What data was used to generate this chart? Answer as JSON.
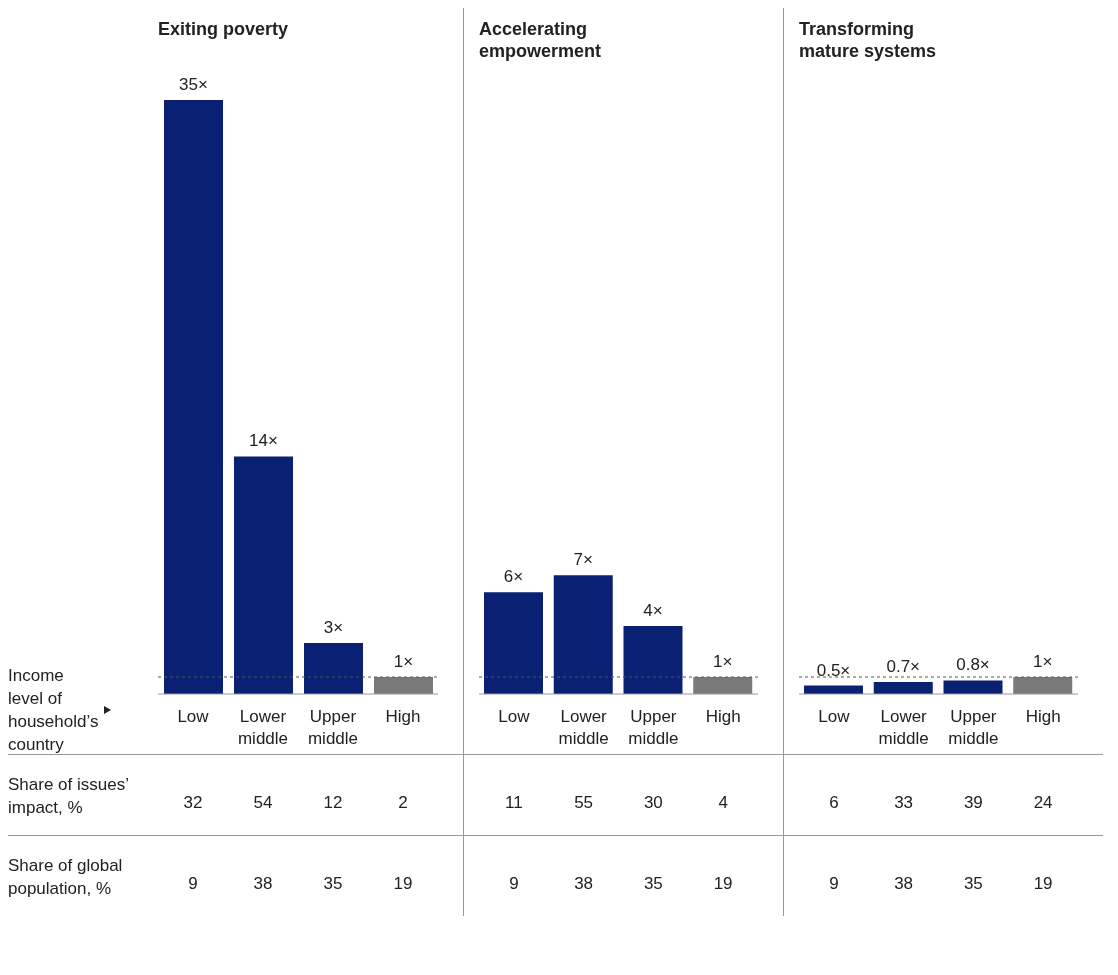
{
  "chart_data": [
    {
      "type": "bar",
      "title": "Exiting poverty",
      "xlabel": "Income level of household’s country",
      "categories": [
        "Low",
        "Lower middle",
        "Upper middle",
        "High"
      ],
      "values": [
        35,
        14,
        3,
        1
      ],
      "colors": [
        "#0a2173",
        "#0a2173",
        "#0a2173",
        "#7a7a7a"
      ],
      "value_labels": [
        "35×",
        "14×",
        "3×",
        "1×"
      ],
      "tick_labels": "x",
      "ref_lines": [
        {
          "axis": "y",
          "value": 1,
          "line_style": "dashed",
          "color": "#555555"
        }
      ],
      "annotations": [
        "Share of issues’ impact, %",
        "32",
        "54",
        "12",
        "2",
        "Share of global population, %",
        "9",
        "38",
        "35",
        "19"
      ]
    },
    {
      "type": "bar",
      "title": "Accelerating empowerment",
      "categories": [
        "Low",
        "Lower middle",
        "Upper middle",
        "High"
      ],
      "values": [
        6,
        7,
        4,
        1
      ],
      "colors": [
        "#0a2173",
        "#0a2173",
        "#0a2173",
        "#7a7a7a"
      ],
      "value_labels": [
        "6×",
        "7×",
        "4×",
        "1×"
      ],
      "tick_labels": "x",
      "ref_lines": [
        {
          "axis": "y",
          "value": 1,
          "line_style": "dashed",
          "color": "#555555"
        }
      ],
      "annotations": [
        "11",
        "55",
        "30",
        "4",
        "9",
        "38",
        "35",
        "19"
      ]
    },
    {
      "type": "bar",
      "title": "Transforming mature systems",
      "categories": [
        "Low",
        "Lower middle",
        "Upper middle",
        "High"
      ],
      "values": [
        0.5,
        0.7,
        0.8,
        1
      ],
      "colors": [
        "#0a2173",
        "#0a2173",
        "#0a2173",
        "#7a7a7a"
      ],
      "value_labels": [
        "0.5×",
        "0.7×",
        "0.8×",
        "1×"
      ],
      "tick_labels": "x",
      "ref_lines": [
        {
          "axis": "y",
          "value": 1,
          "line_style": "dashed",
          "color": "#555555"
        }
      ],
      "annotations": [
        "6",
        "33",
        "39",
        "24",
        "9",
        "38",
        "35",
        "19"
      ]
    }
  ]
}
